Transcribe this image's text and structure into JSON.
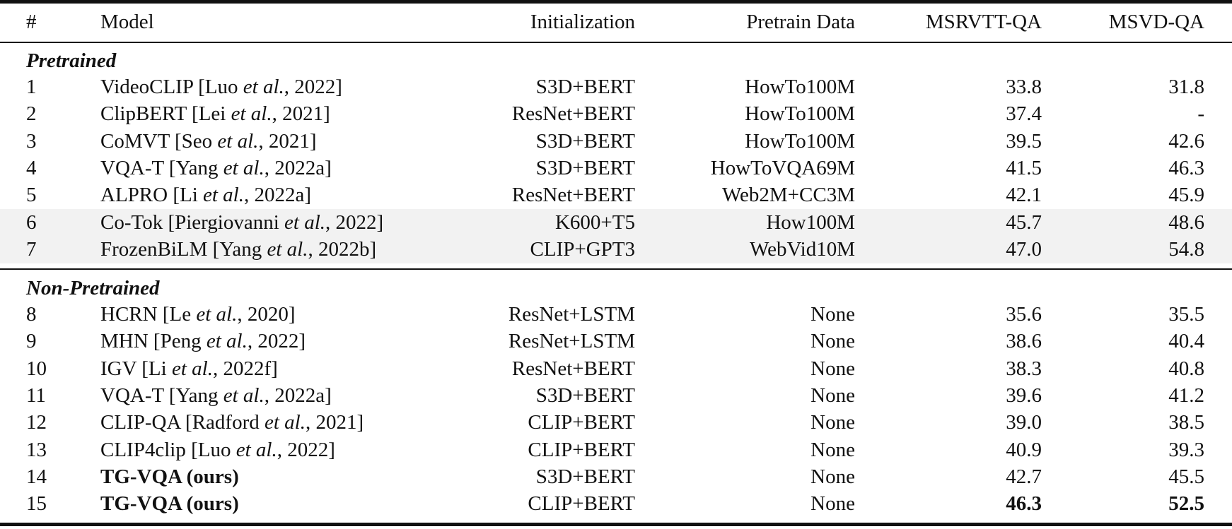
{
  "table": {
    "header": [
      "#",
      "Model",
      "Initialization",
      "Pretrain Data",
      "MSRVTT-QA",
      "MSVD-QA"
    ],
    "sections": [
      {
        "title": "Pretrained",
        "rows": [
          {
            "id": "1",
            "model": [
              "VideoCLIP [Luo ",
              "et al.",
              ", 2022]"
            ],
            "init": "S3D+BERT",
            "data": "HowTo100M",
            "msrvtt": "33.8",
            "msvd": "31.8"
          },
          {
            "id": "2",
            "model": [
              "ClipBERT [Lei ",
              "et al.",
              ", 2021]"
            ],
            "init": "ResNet+BERT",
            "data": "HowTo100M",
            "msrvtt": "37.4",
            "msvd": "-"
          },
          {
            "id": "3",
            "model": [
              "CoMVT [Seo ",
              "et al.",
              ", 2021]"
            ],
            "init": "S3D+BERT",
            "data": "HowTo100M",
            "msrvtt": "39.5",
            "msvd": "42.6"
          },
          {
            "id": "4",
            "model": [
              "VQA-T [Yang ",
              "et al.",
              ", 2022a]"
            ],
            "init": "S3D+BERT",
            "data": "HowToVQA69M",
            "msrvtt": "41.5",
            "msvd": "46.3"
          },
          {
            "id": "5",
            "model": [
              "ALPRO [Li ",
              "et al.",
              ", 2022a]"
            ],
            "init": "ResNet+BERT",
            "data": "Web2M+CC3M",
            "msrvtt": "42.1",
            "msvd": "45.9"
          },
          {
            "id": "6",
            "model": [
              "Co-Tok [Piergiovanni ",
              "et al.",
              ", 2022]"
            ],
            "init": "K600+T5",
            "data": "How100M",
            "msrvtt": "45.7",
            "msvd": "48.6",
            "highlight": true
          },
          {
            "id": "7",
            "model": [
              "FrozenBiLM [Yang ",
              "et al.",
              ", 2022b]"
            ],
            "init": "CLIP+GPT3",
            "data": "WebVid10M",
            "msrvtt": "47.0",
            "msvd": "54.8",
            "highlight": true
          }
        ]
      },
      {
        "title": "Non-Pretrained",
        "rows": [
          {
            "id": "8",
            "model": [
              "HCRN [Le ",
              "et al.",
              ", 2020]"
            ],
            "init": "ResNet+LSTM",
            "data": "None",
            "msrvtt": "35.6",
            "msvd": "35.5"
          },
          {
            "id": "9",
            "model": [
              "MHN [Peng ",
              "et al.",
              ", 2022]"
            ],
            "init": "ResNet+LSTM",
            "data": "None",
            "msrvtt": "38.6",
            "msvd": "40.4"
          },
          {
            "id": "10",
            "model": [
              "IGV [Li ",
              "et al.",
              ", 2022f]"
            ],
            "init": "ResNet+BERT",
            "data": "None",
            "msrvtt": "38.3",
            "msvd": "40.8"
          },
          {
            "id": "11",
            "model": [
              "VQA-T [Yang ",
              "et al.",
              ", 2022a]"
            ],
            "init": "S3D+BERT",
            "data": "None",
            "msrvtt": "39.6",
            "msvd": "41.2"
          },
          {
            "id": "12",
            "model": [
              "CLIP-QA [Radford ",
              "et al.",
              ", 2021]"
            ],
            "init": "CLIP+BERT",
            "data": "None",
            "msrvtt": "39.0",
            "msvd": "38.5"
          },
          {
            "id": "13",
            "model": [
              "CLIP4clip [Luo ",
              "et al.",
              ", 2022]"
            ],
            "init": "CLIP+BERT",
            "data": "None",
            "msrvtt": "40.9",
            "msvd": "39.3"
          },
          {
            "id": "14",
            "model": [
              "TG-VQA (ours)"
            ],
            "init": "S3D+BERT",
            "data": "None",
            "msrvtt": "42.7",
            "msvd": "45.5",
            "bold": [
              "model"
            ]
          },
          {
            "id": "15",
            "model": [
              "TG-VQA (ours)"
            ],
            "init": "CLIP+BERT",
            "data": "None",
            "msrvtt": "46.3",
            "msvd": "52.5",
            "bold": [
              "model",
              "msrvtt",
              "msvd"
            ]
          }
        ]
      }
    ]
  }
}
